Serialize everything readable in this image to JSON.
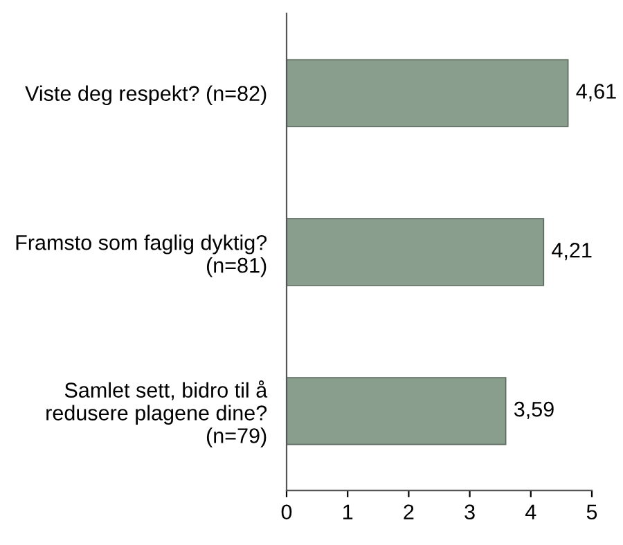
{
  "chart_data": {
    "type": "bar",
    "orientation": "horizontal",
    "categories": [
      "Viste deg respekt? (n=82)",
      "Framsto som faglig dyktig?\n(n=81)",
      "Samlet sett, bidro til å\nredusere plagene dine?\n(n=79)"
    ],
    "values": [
      4.61,
      4.21,
      3.59
    ],
    "value_labels": [
      "4,61",
      "4,21",
      "3,59"
    ],
    "color": "#8a9e8e",
    "xlim": [
      0,
      5
    ],
    "xticks": [
      0,
      1,
      2,
      3,
      4,
      5
    ],
    "grid": false
  }
}
